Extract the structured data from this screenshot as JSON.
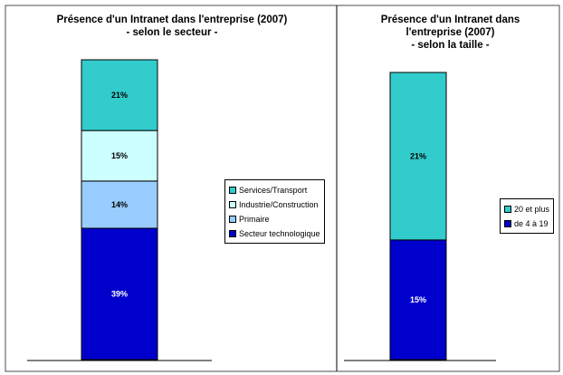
{
  "chart_data": [
    {
      "type": "bar",
      "stacked": true,
      "title": "Présence d'un Intranet dans l'entreprise (2007)\n- selon le secteur -",
      "categories": [
        ""
      ],
      "series": [
        {
          "name": "Secteur technologique",
          "values": [
            39
          ],
          "label": "39%",
          "color": "#0000cc"
        },
        {
          "name": "Primaire",
          "values": [
            14
          ],
          "label": "14%",
          "color": "#99ccff"
        },
        {
          "name": "Industrie/Construction",
          "values": [
            15
          ],
          "label": "15%",
          "color": "#ccffff"
        },
        {
          "name": "Services/Transport",
          "values": [
            21
          ],
          "label": "21%",
          "color": "#33cccc"
        }
      ],
      "legend_order": [
        "Services/Transport",
        "Industrie/Construction",
        "Primaire",
        "Secteur technologique"
      ],
      "legend_position": "right",
      "ylim": [
        0,
        100
      ],
      "grid": false
    },
    {
      "type": "bar",
      "stacked": true,
      "title": "Présence d'un Intranet dans\nl'entreprise (2007)\n- selon la taille -",
      "categories": [
        ""
      ],
      "series": [
        {
          "name": "de 4 à 19",
          "values": [
            15
          ],
          "label": "15%",
          "color": "#0000cc"
        },
        {
          "name": "20 et plus",
          "values": [
            21
          ],
          "label": "21%",
          "color": "#33cccc"
        }
      ],
      "legend_order": [
        "20 et plus",
        "de 4 à 19"
      ],
      "legend_position": "right",
      "ylim": [
        0,
        100
      ],
      "grid": false
    }
  ]
}
